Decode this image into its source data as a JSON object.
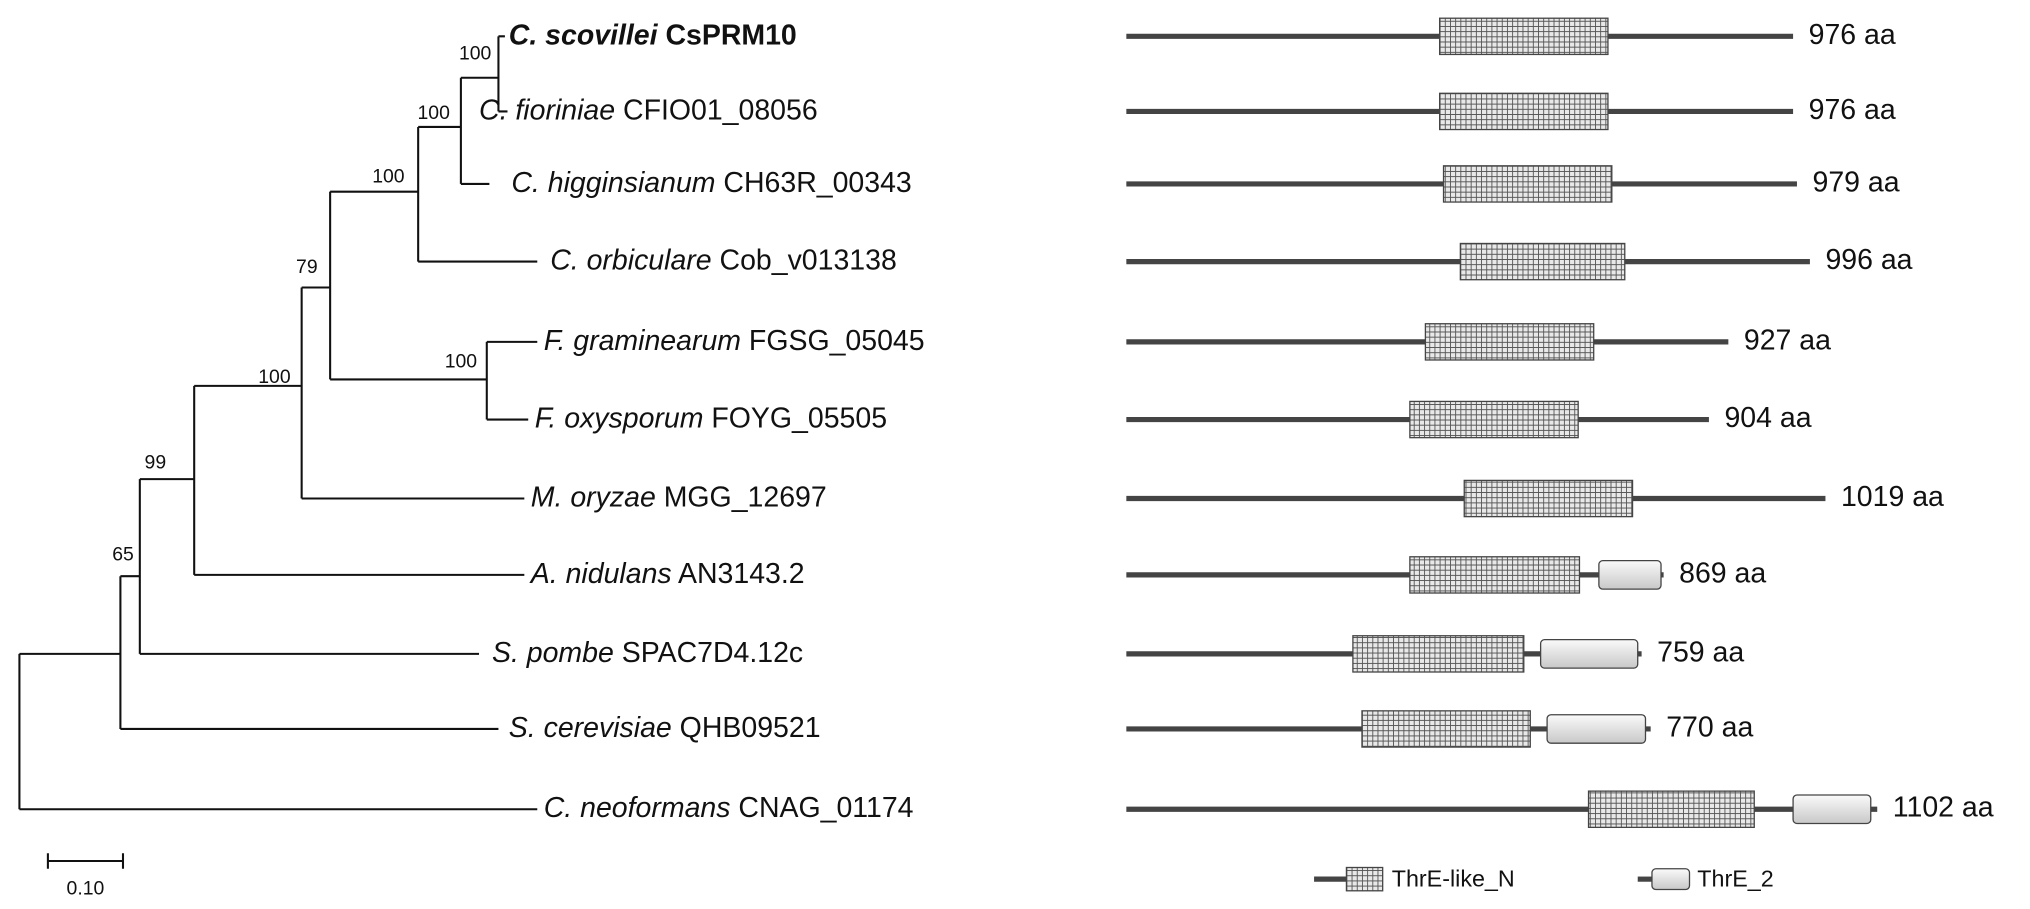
{
  "taxa": [
    {
      "species": "C. scovillei",
      "gene": "CsPRM10",
      "length": "976 aa"
    },
    {
      "species": "C. fioriniae",
      "gene": "CFIO01_08056",
      "length": "976 aa"
    },
    {
      "species": "C. higginsianum",
      "gene": "CH63R_00343",
      "length": "979 aa"
    },
    {
      "species": "C. orbiculare",
      "gene": "Cob_v013138",
      "length": "996 aa"
    },
    {
      "species": "F. graminearum",
      "gene": "FGSG_05045",
      "length": "927 aa"
    },
    {
      "species": "F. oxysporum",
      "gene": "FOYG_05505",
      "length": "904 aa"
    },
    {
      "species": "M. oryzae",
      "gene": "MGG_12697",
      "length": "1019 aa"
    },
    {
      "species": "A. nidulans",
      "gene": "AN3143.2",
      "length": "869 aa"
    },
    {
      "species": "S. pombe",
      "gene": "SPAC7D4.12c",
      "length": "759 aa"
    },
    {
      "species": "S. cerevisiae",
      "gene": "QHB09521",
      "length": "770 aa"
    },
    {
      "species": "C. neoformans",
      "gene": "CNAG_01174",
      "length": "1102 aa"
    }
  ],
  "bootstrap": [
    "100",
    "100",
    "100",
    "79",
    "100",
    "100",
    "99",
    "65"
  ],
  "scale_bar": "0.10",
  "legend": [
    "ThrE-like_N",
    "ThrE_2"
  ]
}
